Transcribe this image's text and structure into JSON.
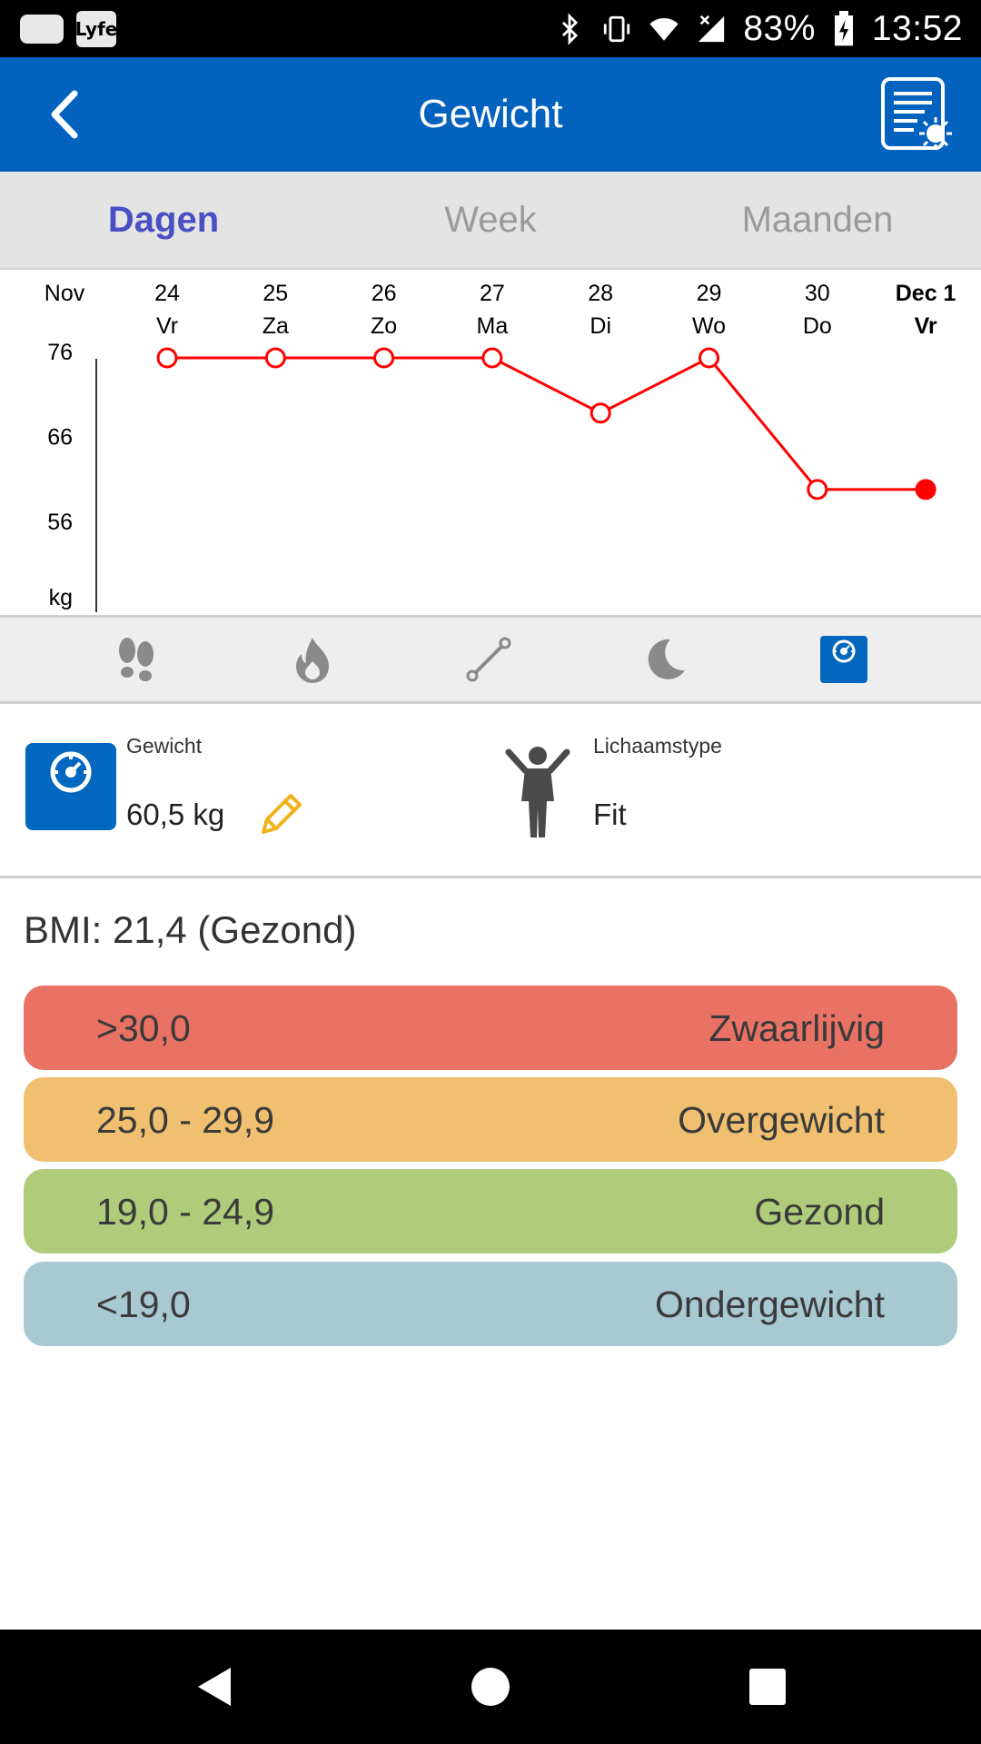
{
  "status_bar": {
    "battery": "83%",
    "time": "13:52",
    "notif_app_label": "Lyfe",
    "icons": [
      "message-icon",
      "lyfe-app-icon",
      "bluetooth-icon",
      "vibrate-icon",
      "wifi-icon",
      "signal-icon",
      "battery-charging-icon"
    ]
  },
  "app_bar": {
    "title": "Gewicht",
    "back_icon": "chevron-left-icon",
    "report_icon": "report-icon"
  },
  "tabs": [
    {
      "label": "Dagen",
      "active": true
    },
    {
      "label": "Week",
      "active": false
    },
    {
      "label": "Maanden",
      "active": false
    }
  ],
  "chart_data": {
    "type": "line",
    "month_label": "Nov",
    "unit_label": "kg",
    "categories": [
      {
        "day": "24",
        "weekday": "Vr"
      },
      {
        "day": "25",
        "weekday": "Za"
      },
      {
        "day": "26",
        "weekday": "Zo"
      },
      {
        "day": "27",
        "weekday": "Ma"
      },
      {
        "day": "28",
        "weekday": "Di"
      },
      {
        "day": "29",
        "weekday": "Wo"
      },
      {
        "day": "30",
        "weekday": "Do"
      },
      {
        "day": "Dec 1",
        "weekday": "Vr"
      }
    ],
    "y_ticks": [
      76,
      66,
      56
    ],
    "ylim": [
      46,
      76
    ],
    "values": [
      76,
      76,
      76,
      76,
      69.5,
      76,
      60.5,
      60.5
    ],
    "highlighted_index": 7,
    "line_color": "#ff0000",
    "grid": false
  },
  "icon_strip": [
    {
      "icon": "footsteps-icon",
      "selected": false
    },
    {
      "icon": "flame-icon",
      "selected": false
    },
    {
      "icon": "distance-icon",
      "selected": false
    },
    {
      "icon": "moon-icon",
      "selected": false
    },
    {
      "icon": "scale-icon",
      "selected": true
    }
  ],
  "weight": {
    "label": "Gewicht",
    "value": "60,5 kg",
    "edit_icon": "pencil-icon"
  },
  "body_type": {
    "label": "Lichaamstype",
    "value": "Fit"
  },
  "bmi": {
    "title": "BMI: 21,4 (Gezond)",
    "rows": [
      {
        "range": ">30,0",
        "category": "Zwaarlijvig",
        "color": "#e97264"
      },
      {
        "range": "25,0 - 29,9",
        "category": "Overgewicht",
        "color": "#f0c070"
      },
      {
        "range": "19,0 - 24,9",
        "category": "Gezond",
        "color": "#afcc7a"
      },
      {
        "range": "<19,0",
        "category": "Ondergewicht",
        "color": "#a8c8d2"
      }
    ]
  },
  "colors": {
    "app_bar": "#0262be",
    "active_tab": "#4a4fc4",
    "scale_tile": "#0268bf",
    "pencil": "#f2b21c"
  }
}
